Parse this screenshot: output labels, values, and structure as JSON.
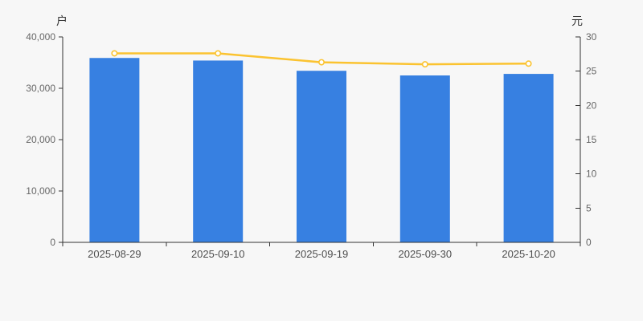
{
  "chart_data": {
    "type": "bar",
    "subtype": "bar-with-line-dual-axis",
    "title": "",
    "categories": [
      "2025-08-29",
      "2025-09-10",
      "2025-09-19",
      "2025-09-30",
      "2025-10-20"
    ],
    "series": [
      {
        "id": "bar_series",
        "type": "bar",
        "y_axis": "left",
        "color": "#3780e1",
        "values": [
          35900,
          35400,
          33400,
          32500,
          32800
        ]
      },
      {
        "id": "line_series",
        "type": "line",
        "y_axis": "right",
        "color": "#fbc330",
        "marker": "hollow-circle",
        "marker_fill": "#ffffff",
        "values": [
          27.6,
          27.6,
          26.3,
          26.0,
          26.1
        ]
      }
    ],
    "left_axis": {
      "unit": "户",
      "min": 0,
      "max": 40000,
      "tick_interval": 10000,
      "ticks": [
        0,
        10000,
        20000,
        30000,
        40000
      ],
      "tick_labels": [
        "0",
        "10,000",
        "20,000",
        "30,000",
        "40,000"
      ]
    },
    "right_axis": {
      "unit": "元",
      "min": 0,
      "max": 30,
      "tick_interval": 5,
      "ticks": [
        0,
        5,
        10,
        15,
        20,
        25,
        30
      ],
      "tick_labels": [
        "0",
        "5",
        "10",
        "15",
        "20",
        "25",
        "30"
      ]
    },
    "legend": "none",
    "grid": "off",
    "background": "#f7f7f7",
    "axis_color": "#333333",
    "y_tick_label_color": "#666666",
    "x_tick_label_color": "#4d4d4d",
    "unit_label_color": "#333333"
  }
}
